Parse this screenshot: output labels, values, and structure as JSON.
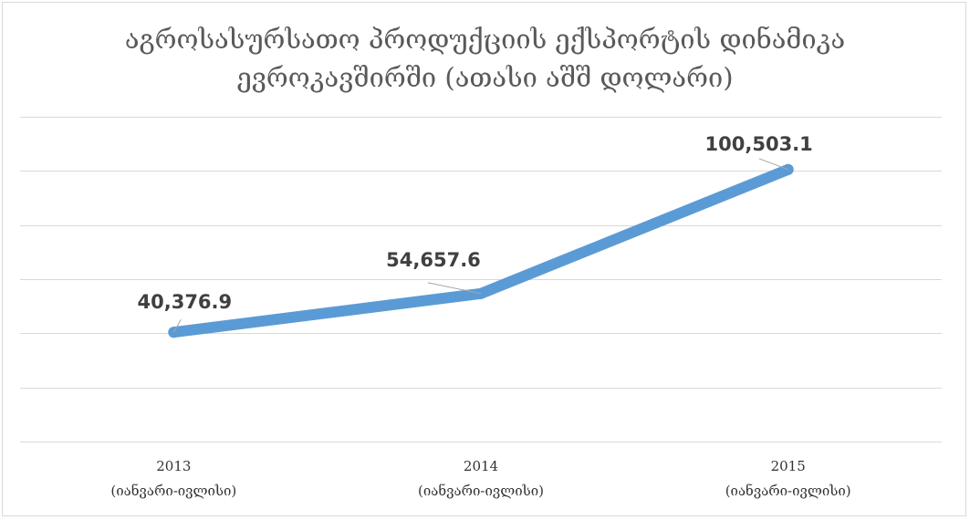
{
  "chart_data": {
    "type": "line",
    "title_lines": [
      "აგროსასურსათო პროდუქციის ექსპორტის დინამიკა",
      "ევროკავშირში (ათასი აშშ დოლარი)"
    ],
    "categories": [
      {
        "year": "2013",
        "period": "(იანვარი-ივლისი)"
      },
      {
        "year": "2014",
        "period": "(იანვარი-ივლისი)"
      },
      {
        "year": "2015",
        "period": "(იანვარი-ივლისი)"
      }
    ],
    "values": [
      40376.9,
      54657.6,
      100503.1
    ],
    "data_labels": [
      "40,376.9",
      "54,657.6",
      "100,503.1"
    ],
    "ylim": [
      0,
      120000
    ],
    "y_grid_step": 20000,
    "y_tick_labels_visible": false,
    "grid": true,
    "legend": "none",
    "colors": {
      "series": "#5b9bd5",
      "grid": "#d9d9d9",
      "title": "#595959",
      "data_label": "#404040"
    }
  }
}
